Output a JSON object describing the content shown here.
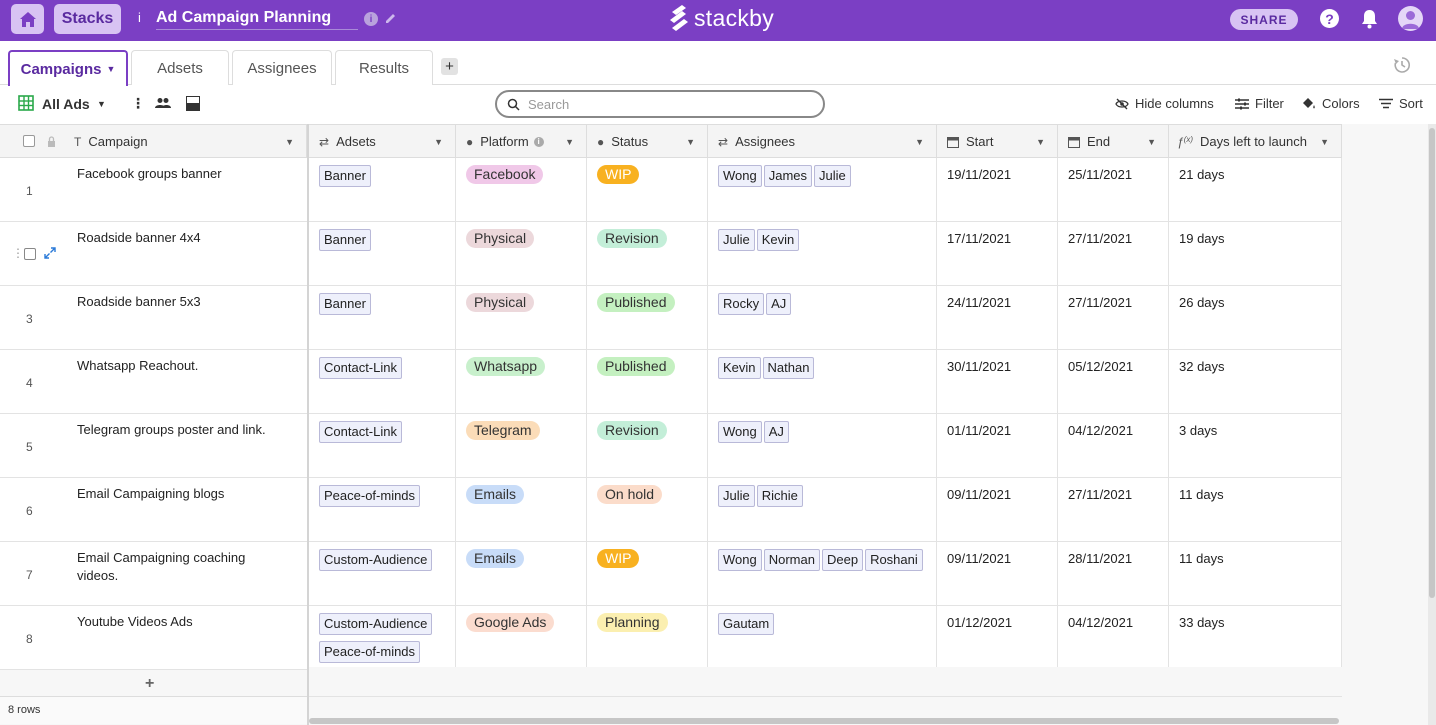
{
  "topbar": {
    "stacks_label": "Stacks",
    "stack_title": "Ad Campaign Planning",
    "info_glyph": "i",
    "logo_text": "stackby",
    "share_label": "SHARE",
    "help_glyph": "?"
  },
  "tabs": [
    {
      "label": "Campaigns",
      "active": true
    },
    {
      "label": "Adsets",
      "active": false
    },
    {
      "label": "Assignees",
      "active": false
    },
    {
      "label": "Results",
      "active": false
    }
  ],
  "add_tab_glyph": "+",
  "toolbar": {
    "view_name": "All Ads",
    "search_placeholder": "Search",
    "hide_columns": "Hide columns",
    "filter": "Filter",
    "colors": "Colors",
    "sort": "Sort"
  },
  "columns": {
    "campaign": "Campaign",
    "adsets": "Adsets",
    "platform": "Platform",
    "status": "Status",
    "assignees": "Assignees",
    "start": "Start",
    "end": "End",
    "days_left": "Days left to launch"
  },
  "colors": {
    "brand": "#7b3fc4",
    "platform": {
      "Facebook": "#f0c8e8",
      "Physical": "#ecd8db",
      "Whatsapp": "#c8f0cc",
      "Telegram": "#fbdcb8",
      "Emails": "#c8dcf8",
      "Google Ads": "#fbdccf"
    },
    "status": {
      "WIP": "#f8b120",
      "Revision": "#c3eed8",
      "Published": "#c4f0c0",
      "On hold": "#fbdcca",
      "Planning": "#fbefb0"
    }
  },
  "rows": [
    {
      "num": "1",
      "campaign": "Facebook groups banner",
      "adsets": [
        "Banner"
      ],
      "platform": "Facebook",
      "status": "WIP",
      "assignees": [
        "Wong",
        "James",
        "Julie"
      ],
      "start": "19/11/2021",
      "end": "25/11/2021",
      "days_left": "21 days"
    },
    {
      "num": "",
      "campaign": "Roadside banner 4x4",
      "adsets": [
        "Banner"
      ],
      "platform": "Physical",
      "status": "Revision",
      "assignees": [
        "Julie",
        "Kevin"
      ],
      "start": "17/11/2021",
      "end": "27/11/2021",
      "days_left": "19 days"
    },
    {
      "num": "3",
      "campaign": "Roadside banner 5x3",
      "adsets": [
        "Banner"
      ],
      "platform": "Physical",
      "status": "Published",
      "assignees": [
        "Rocky",
        "AJ"
      ],
      "start": "24/11/2021",
      "end": "27/11/2021",
      "days_left": "26 days"
    },
    {
      "num": "4",
      "campaign": "Whatsapp Reachout.",
      "adsets": [
        "Contact-Link"
      ],
      "platform": "Whatsapp",
      "status": "Published",
      "assignees": [
        "Kevin",
        "Nathan"
      ],
      "start": "30/11/2021",
      "end": "05/12/2021",
      "days_left": "32 days"
    },
    {
      "num": "5",
      "campaign": "Telegram groups poster and link.",
      "adsets": [
        "Contact-Link"
      ],
      "platform": "Telegram",
      "status": "Revision",
      "assignees": [
        "Wong",
        "AJ"
      ],
      "start": "01/11/2021",
      "end": "04/12/2021",
      "days_left": "3 days"
    },
    {
      "num": "6",
      "campaign": "Email Campaigning blogs",
      "adsets": [
        "Peace-of-minds"
      ],
      "platform": "Emails",
      "status": "On hold",
      "assignees": [
        "Julie",
        "Richie"
      ],
      "start": "09/11/2021",
      "end": "27/11/2021",
      "days_left": "11 days"
    },
    {
      "num": "7",
      "campaign": "Email Campaigning coaching videos.",
      "adsets": [
        "Custom-Audience"
      ],
      "platform": "Emails",
      "status": "WIP",
      "assignees": [
        "Wong",
        "Norman",
        "Deep",
        "Roshani"
      ],
      "start": "09/11/2021",
      "end": "28/11/2021",
      "days_left": "11 days"
    },
    {
      "num": "8",
      "campaign": "Youtube Videos Ads",
      "adsets": [
        "Custom-Audience",
        "Peace-of-minds"
      ],
      "platform": "Google Ads",
      "status": "Planning",
      "assignees": [
        "Gautam"
      ],
      "start": "01/12/2021",
      "end": "04/12/2021",
      "days_left": "33 days"
    }
  ],
  "footer": {
    "row_count": "8 rows",
    "add_row_glyph": "+"
  }
}
